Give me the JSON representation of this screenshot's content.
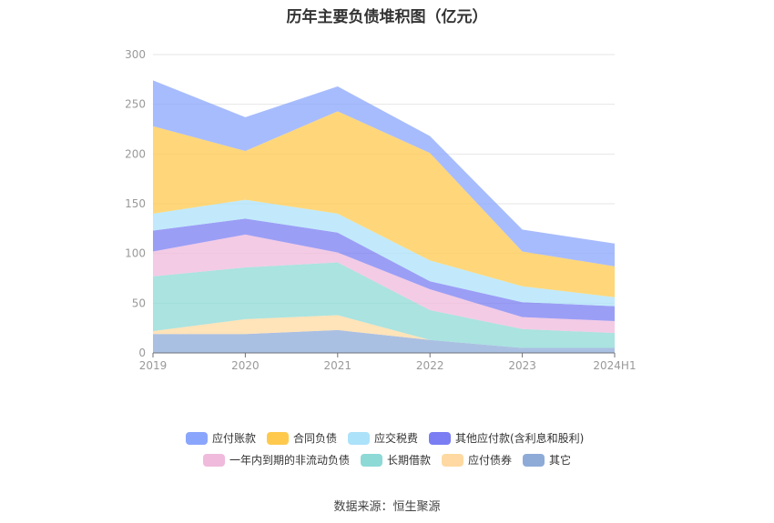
{
  "chart_data": {
    "type": "area",
    "stacked": true,
    "title": "历年主要负债堆积图（亿元）",
    "x": [
      "2019",
      "2020",
      "2021",
      "2022",
      "2023",
      "2024H1"
    ],
    "ylim": [
      0,
      300
    ],
    "yticks": [
      0,
      50,
      100,
      150,
      200,
      250,
      300
    ],
    "grid": true,
    "legend_position": "bottom",
    "series": [
      {
        "name": "其它",
        "color": "#8eabd8",
        "values": [
          19,
          19,
          23,
          13,
          5,
          5
        ]
      },
      {
        "name": "应付债券",
        "color": "#ffd9a1",
        "values": [
          3,
          15,
          15,
          0,
          0,
          0
        ]
      },
      {
        "name": "长期借款",
        "color": "#8dd9d6",
        "values": [
          55,
          52,
          53,
          30,
          19,
          15
        ]
      },
      {
        "name": "一年内到期的非流动负债",
        "color": "#efbadc",
        "values": [
          25,
          33,
          10,
          21,
          12,
          12
        ]
      },
      {
        "name": "其他应付款(含利息和股利)",
        "color": "#7a7ef2",
        "values": [
          21,
          16,
          20,
          8,
          15,
          15
        ]
      },
      {
        "name": "应交税费",
        "color": "#ace2fa",
        "values": [
          17,
          19,
          19,
          21,
          16,
          9
        ]
      },
      {
        "name": "合同负债",
        "color": "#ffc94d",
        "values": [
          88,
          49,
          103,
          108,
          35,
          31
        ]
      },
      {
        "name": "应付账款",
        "color": "#8aa5fc",
        "values": [
          46,
          34,
          25,
          17,
          22,
          23
        ]
      }
    ],
    "legend_order": [
      "应付账款",
      "合同负债",
      "应交税费",
      "其他应付款(含利息和股利)",
      "一年内到期的非流动负债",
      "长期借款",
      "应付债券",
      "其它"
    ]
  },
  "source": "数据来源：恒生聚源"
}
